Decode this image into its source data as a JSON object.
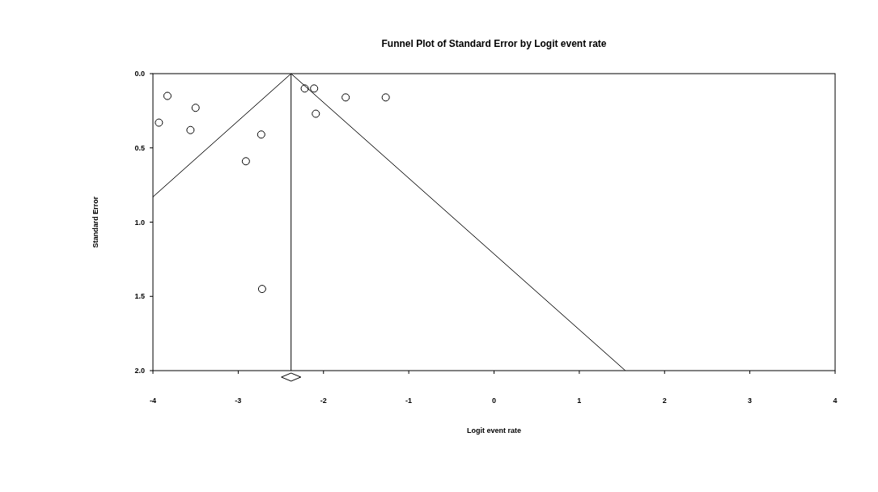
{
  "chart_data": {
    "type": "scatter",
    "title": "Funnel Plot of Standard Error by Logit event rate",
    "xlabel": "Logit event rate",
    "ylabel": "Standard Error",
    "xlim": [
      -4,
      4
    ],
    "xticks": [
      -4,
      -3,
      -2,
      -1,
      0,
      1,
      2,
      3,
      4
    ],
    "ylim": [
      2,
      0
    ],
    "yticks": [
      {
        "value": 0,
        "label": "0.0"
      },
      {
        "value": 0.5,
        "label": "0.5"
      },
      {
        "value": 1,
        "label": "1.0"
      },
      {
        "value": 1.5,
        "label": "1.5"
      },
      {
        "value": 2,
        "label": "2.0"
      }
    ],
    "grid": false,
    "marker": "circle",
    "series": [
      {
        "color": "#000000",
        "x": [
          -3.83,
          -3.93,
          -3.5,
          -3.56,
          -2.73,
          -2.91,
          -2.22,
          -2.11,
          -2.09,
          -1.74,
          -1.27,
          -2.72
        ],
        "values": [
          0.15,
          0.33,
          0.23,
          0.38,
          0.41,
          0.59,
          0.1,
          0.1,
          0.27,
          0.16,
          0.16,
          1.45
        ]
      },
      {
        "type": "line",
        "color": "#000000",
        "marker": "none",
        "line_style": "solid",
        "x": [
          -4,
          -2.38,
          1.54
        ],
        "values": [
          0.83,
          0,
          2
        ]
      }
    ],
    "ref_lines": [
      {
        "axis": "x",
        "value": -2.38,
        "color": "#000000",
        "line_style": "solid"
      }
    ]
  }
}
